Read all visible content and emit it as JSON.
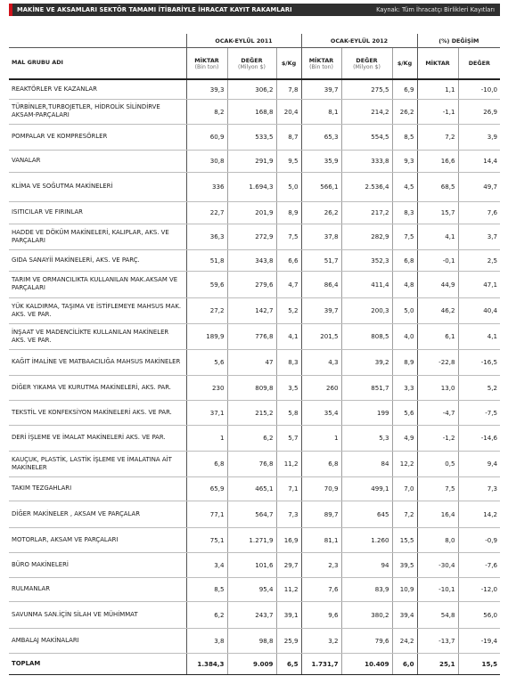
{
  "header": {
    "title": "MAKİNE VE AKSAMLARI SEKTÖR TAMAMI İTİBARİYLE İHRACAT KAYIT RAKAMLARI",
    "source": "Kaynak: Tüm İhracatçı Birlikleri Kayıtları"
  },
  "columns": {
    "period1": "OCAK-EYLÜL 2011",
    "period2": "OCAK-EYLÜL 2012",
    "change": "(%) DEĞİŞİM",
    "name": "MAL GRUBU ADI",
    "miktar": "MİKTAR",
    "miktar_unit": "(Bin ton)",
    "deger": "DEĞER",
    "deger_unit": "(Milyon $)",
    "per_kg": "$/Kg",
    "ch_miktar": "MİKTAR",
    "ch_deger": "DEĞER"
  },
  "rows": [
    {
      "name": "REAKTÖRLER VE KAZANLAR",
      "m11": "39,3",
      "d11": "306,2",
      "k11": "7,8",
      "m12": "39,7",
      "d12": "275,5",
      "k12": "6,9",
      "cm": "1,1",
      "cd": "-10,0"
    },
    {
      "name": "TÜRBİNLER,TURBOJETLER, HİDROLİK SİLİNDİRVE AKSAM-PARÇALARI",
      "m11": "8,2",
      "d11": "168,8",
      "k11": "20,4",
      "m12": "8,1",
      "d12": "214,2",
      "k12": "26,2",
      "cm": "-1,1",
      "cd": "26,9"
    },
    {
      "name": "POMPALAR VE KOMPRESÖRLER",
      "m11": "60,9",
      "d11": "533,5",
      "k11": "8,7",
      "m12": "65,3",
      "d12": "554,5",
      "k12": "8,5",
      "cm": "7,2",
      "cd": "3,9"
    },
    {
      "name": "VANALAR",
      "m11": "30,8",
      "d11": "291,9",
      "k11": "9,5",
      "m12": "35,9",
      "d12": "333,8",
      "k12": "9,3",
      "cm": "16,6",
      "cd": "14,4"
    },
    {
      "name": "KLİMA VE SOĞUTMA MAKİNELERİ",
      "m11": "336",
      "d11": "1.694,3",
      "k11": "5,0",
      "m12": "566,1",
      "d12": "2.536,4",
      "k12": "4,5",
      "cm": "68,5",
      "cd": "49,7"
    },
    {
      "name": "ISITICILAR VE FIRINLAR",
      "m11": "22,7",
      "d11": "201,9",
      "k11": "8,9",
      "m12": "26,2",
      "d12": "217,2",
      "k12": "8,3",
      "cm": "15,7",
      "cd": "7,6"
    },
    {
      "name": "HADDE VE DÖKÜM MAKİNELERİ, KALIPLAR, AKS. VE PARÇALARI",
      "m11": "36,3",
      "d11": "272,9",
      "k11": "7,5",
      "m12": "37,8",
      "d12": "282,9",
      "k12": "7,5",
      "cm": "4,1",
      "cd": "3,7"
    },
    {
      "name": "GIDA SANAYİİ MAKİNELERİ, AKS. VE PARÇ.",
      "m11": "51,8",
      "d11": "343,8",
      "k11": "6,6",
      "m12": "51,7",
      "d12": "352,3",
      "k12": "6,8",
      "cm": "-0,1",
      "cd": "2,5"
    },
    {
      "name": "TARIM VE ORMANCILIKTA KULLANILAN MAK.AKSAM VE PARÇALARI",
      "m11": "59,6",
      "d11": "279,6",
      "k11": "4,7",
      "m12": "86,4",
      "d12": "411,4",
      "k12": "4,8",
      "cm": "44,9",
      "cd": "47,1"
    },
    {
      "name": "YÜK KALDIRMA, TAŞIMA VE İSTİFLEMEYE MAHSUS MAK. AKS. VE PAR.",
      "m11": "27,2",
      "d11": "142,7",
      "k11": "5,2",
      "m12": "39,7",
      "d12": "200,3",
      "k12": "5,0",
      "cm": "46,2",
      "cd": "40,4"
    },
    {
      "name": "İNŞAAT VE MADENCİLİKTE KULLANILAN MAKİNELER AKS. VE PAR.",
      "m11": "189,9",
      "d11": "776,8",
      "k11": "4,1",
      "m12": "201,5",
      "d12": "808,5",
      "k12": "4,0",
      "cm": "6,1",
      "cd": "4,1"
    },
    {
      "name": "KAĞIT İMALİNE VE MATBAACILIĞA MAHSUS MAKİNELER",
      "m11": "5,6",
      "d11": "47",
      "k11": "8,3",
      "m12": "4,3",
      "d12": "39,2",
      "k12": "8,9",
      "cm": "-22,8",
      "cd": "-16,5"
    },
    {
      "name": "DİĞER YIKAMA VE KURUTMA MAKİNELERİ, AKS. PAR.",
      "m11": "230",
      "d11": "809,8",
      "k11": "3,5",
      "m12": "260",
      "d12": "851,7",
      "k12": "3,3",
      "cm": "13,0",
      "cd": "5,2"
    },
    {
      "name": "TEKSTİL VE KONFEKSİYON MAKİNELERİ AKS. VE PAR.",
      "m11": "37,1",
      "d11": "215,2",
      "k11": "5,8",
      "m12": "35,4",
      "d12": "199",
      "k12": "5,6",
      "cm": "-4,7",
      "cd": "-7,5"
    },
    {
      "name": "DERİ İŞLEME VE İMALAT MAKİNELERİ AKS. VE PAR.",
      "m11": "1",
      "d11": "6,2",
      "k11": "5,7",
      "m12": "1",
      "d12": "5,3",
      "k12": "4,9",
      "cm": "-1,2",
      "cd": "-14,6"
    },
    {
      "name": "KAUÇUK, PLASTİK, LASTİK İŞLEME VE İMALATINA AİT MAKİNELER",
      "m11": "6,8",
      "d11": "76,8",
      "k11": "11,2",
      "m12": "6,8",
      "d12": "84",
      "k12": "12,2",
      "cm": "0,5",
      "cd": "9,4"
    },
    {
      "name": "TAKIM TEZGAHLARI",
      "m11": "65,9",
      "d11": "465,1",
      "k11": "7,1",
      "m12": "70,9",
      "d12": "499,1",
      "k12": "7,0",
      "cm": "7,5",
      "cd": "7,3"
    },
    {
      "name": "DİĞER MAKİNELER , AKSAM VE PARÇALAR",
      "m11": "77,1",
      "d11": "564,7",
      "k11": "7,3",
      "m12": "89,7",
      "d12": "645",
      "k12": "7,2",
      "cm": "16,4",
      "cd": "14,2"
    },
    {
      "name": "MOTORLAR, AKSAM VE PARÇALARI",
      "m11": "75,1",
      "d11": "1.271,9",
      "k11": "16,9",
      "m12": "81,1",
      "d12": "1.260",
      "k12": "15,5",
      "cm": "8,0",
      "cd": "-0,9"
    },
    {
      "name": "BÜRO MAKİNELERİ",
      "m11": "3,4",
      "d11": "101,6",
      "k11": "29,7",
      "m12": "2,3",
      "d12": "94",
      "k12": "39,5",
      "cm": "-30,4",
      "cd": "-7,6"
    },
    {
      "name": "RULMANLAR",
      "m11": "8,5",
      "d11": "95,4",
      "k11": "11,2",
      "m12": "7,6",
      "d12": "83,9",
      "k12": "10,9",
      "cm": "-10,1",
      "cd": "-12,0"
    },
    {
      "name": "SAVUNMA SAN.İÇİN SİLAH VE MÜHİMMAT",
      "m11": "6,2",
      "d11": "243,7",
      "k11": "39,1",
      "m12": "9,6",
      "d12": "380,2",
      "k12": "39,4",
      "cm": "54,8",
      "cd": "56,0"
    },
    {
      "name": "AMBALAJ MAKİNALARI",
      "m11": "3,8",
      "d11": "98,8",
      "k11": "25,9",
      "m12": "3,2",
      "d12": "79,6",
      "k12": "24,2",
      "cm": "-13,7",
      "cd": "-19,4"
    }
  ],
  "total": {
    "name": "TOPLAM",
    "m11": "1.384,3",
    "d11": "9.009",
    "k11": "6,5",
    "m12": "1.731,7",
    "d12": "10.409",
    "k12": "6,0",
    "cm": "25,1",
    "cd": "15,5"
  },
  "colors": {
    "accent": "#d1121b",
    "header_bar": "#2f2f2f"
  }
}
